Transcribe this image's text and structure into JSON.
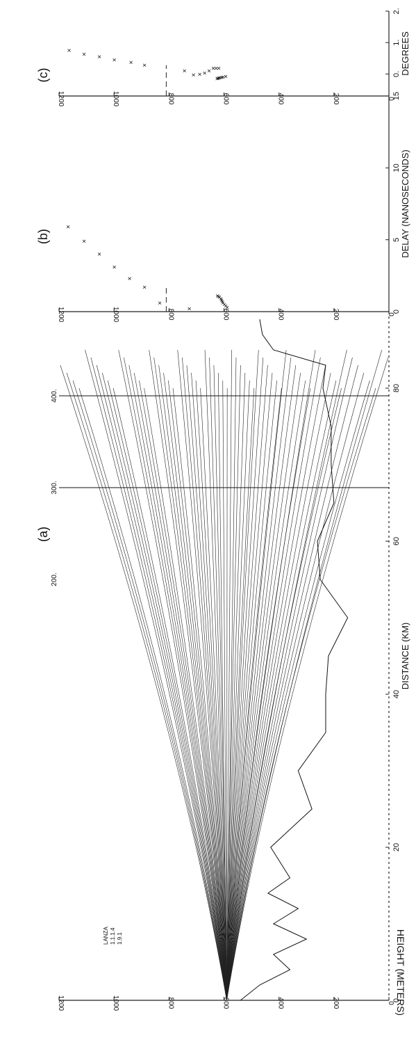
{
  "figure": {
    "panel_labels": [
      "(a)",
      "(b)",
      "(c)"
    ],
    "shared_y_label": "HEIGHT (METERS)",
    "inset_text": [
      "LANZA",
      "1.1.1.4",
      "1.9.1"
    ]
  },
  "chart_data": [
    {
      "type": "line",
      "panel": "(a)",
      "xlabel": "DISTANCE (KM)",
      "ylabel": "HEIGHT (METERS)",
      "xlim": [
        0,
        90
      ],
      "ylim": [
        0,
        1200
      ],
      "xticks": [
        "0",
        "20",
        "40",
        "60",
        "80"
      ],
      "yticks": [
        "0",
        "200",
        "400",
        "600",
        "800",
        "1000",
        "1200"
      ],
      "top_ticks": [
        "200.",
        "300.",
        "400."
      ],
      "source_height": 590,
      "vertical_markers": [
        {
          "label": "300.",
          "x": 67
        },
        {
          "label": "400.",
          "x": 79
        }
      ],
      "ground_profile": [
        [
          0,
          540
        ],
        [
          2,
          470
        ],
        [
          4,
          360
        ],
        [
          6,
          420
        ],
        [
          8,
          300
        ],
        [
          10,
          420
        ],
        [
          12,
          330
        ],
        [
          14,
          440
        ],
        [
          16,
          360
        ],
        [
          20,
          430
        ],
        [
          25,
          280
        ],
        [
          30,
          330
        ],
        [
          35,
          230
        ],
        [
          40,
          230
        ],
        [
          45,
          220
        ],
        [
          50,
          150
        ],
        [
          55,
          250
        ],
        [
          60,
          260
        ],
        [
          65,
          200
        ],
        [
          70,
          210
        ],
        [
          75,
          210
        ],
        [
          80,
          240
        ],
        [
          83,
          230
        ],
        [
          85,
          420
        ],
        [
          87,
          460
        ],
        [
          89,
          470
        ]
      ],
      "ray_launch_angles_deg": "fan"
    },
    {
      "type": "scatter",
      "panel": "(b)",
      "xlabel": "DELAY (NANOSECONDS)",
      "ylabel": "",
      "xlim": [
        0,
        15
      ],
      "ylim": [
        0,
        1200
      ],
      "xticks": [
        "0",
        "5",
        "10",
        "15"
      ],
      "yticks": [
        "0",
        "200",
        "400",
        "600",
        "800",
        "1000",
        "1200"
      ],
      "dashed_level": 810,
      "points": [
        [
          0.3,
          580
        ],
        [
          0.4,
          585
        ],
        [
          0.5,
          590
        ],
        [
          0.6,
          595
        ],
        [
          0.7,
          598
        ],
        [
          0.8,
          600
        ],
        [
          0.9,
          603
        ],
        [
          1.0,
          607
        ],
        [
          1.05,
          612
        ],
        [
          1.1,
          615
        ],
        [
          0.2,
          717
        ],
        [
          0.6,
          825
        ],
        [
          1.7,
          880
        ],
        [
          2.3,
          935
        ],
        [
          3.1,
          990
        ],
        [
          4.0,
          1045
        ],
        [
          4.9,
          1100
        ],
        [
          5.9,
          1158
        ]
      ]
    },
    {
      "type": "scatter",
      "panel": "(c)",
      "xlabel": "DEGREES",
      "ylabel": "",
      "xlim": [
        -0.7,
        2.0
      ],
      "ylim": [
        0,
        1200
      ],
      "xticks": [
        "0.",
        "1.",
        "2."
      ],
      "yticks": [
        "0",
        "200",
        "400",
        "600",
        "800",
        "1000",
        "1200"
      ],
      "dashed_level": 810,
      "points": [
        [
          0.18,
          610
        ],
        [
          0.18,
          620
        ],
        [
          0.18,
          630
        ],
        [
          0.1,
          645
        ],
        [
          0.03,
          662
        ],
        [
          -0.01,
          680
        ],
        [
          -0.03,
          702
        ],
        [
          -0.08,
          585
        ],
        [
          -0.1,
          595
        ],
        [
          -0.11,
          600
        ],
        [
          -0.12,
          606
        ],
        [
          -0.13,
          610
        ],
        [
          -0.14,
          614
        ],
        [
          -0.15,
          617
        ],
        [
          0.1,
          735
        ],
        [
          0.28,
          880
        ],
        [
          0.37,
          930
        ],
        [
          0.45,
          990
        ],
        [
          0.55,
          1045
        ],
        [
          0.63,
          1100
        ],
        [
          0.75,
          1155
        ]
      ]
    }
  ]
}
